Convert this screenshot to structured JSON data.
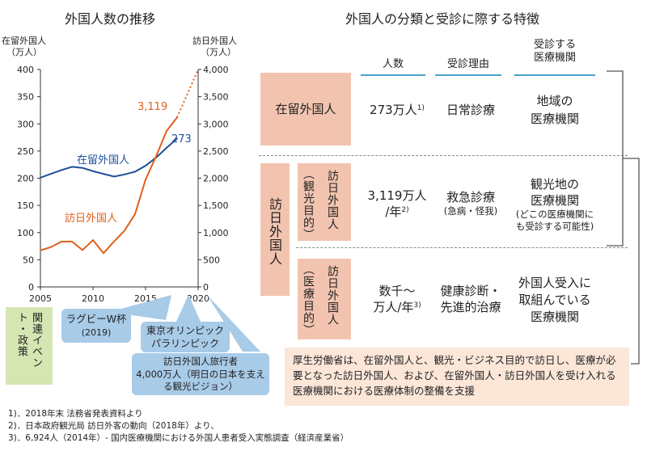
{
  "left_title": "外国人数の推移",
  "right_title": "外国人の分類と受診に際する特徴",
  "chart_data": {
    "type": "line",
    "x": [
      2005,
      2006,
      2007,
      2008,
      2009,
      2010,
      2011,
      2012,
      2013,
      2014,
      2015,
      2016,
      2017,
      2018
    ],
    "left_axis_label_1": "在留外国人",
    "left_axis_label_2": "（万人）",
    "right_axis_label_1": "訪日外国人",
    "right_axis_label_2": "（万人）",
    "left_ticks": [
      "400",
      "350",
      "300",
      "250",
      "200",
      "150",
      "100",
      "50",
      "0"
    ],
    "right_ticks": [
      "4,000",
      "3,500",
      "3,000",
      "2,500",
      "2,000",
      "1,500",
      "1,000",
      "500",
      "0"
    ],
    "x_ticks": [
      "2005",
      "2010",
      "2015",
      "2020"
    ],
    "xlim": [
      2005,
      2020
    ],
    "ylim_left": [
      0,
      400
    ],
    "ylim_right": [
      0,
      4000
    ],
    "series": [
      {
        "name": "在留外国人",
        "axis": "left",
        "color": "#1f4f99",
        "values": [
          201,
          208,
          215,
          221,
          219,
          213,
          208,
          203,
          207,
          212,
          223,
          238,
          256,
          273
        ]
      },
      {
        "name": "訪日外国人",
        "axis": "right",
        "color": "#e0601c",
        "values": [
          673,
          733,
          835,
          835,
          679,
          861,
          622,
          836,
          1036,
          1341,
          1974,
          2404,
          2869,
          3119
        ]
      }
    ],
    "projection": {
      "axis": "right",
      "from": [
        2018,
        3119
      ],
      "to": [
        2020,
        4000
      ]
    },
    "labels": {
      "zairyu": "在留外国人",
      "honichi": "訪日外国人",
      "honichi_value": "3,119",
      "zairyu_value": "273"
    }
  },
  "events": {
    "side_label": "関連イベント・政策",
    "rugby": "ラグビーW杯",
    "rugby_year": "(2019)",
    "olympics_1": "東京オリンピック",
    "olympics_2": "パラリンピック",
    "target_1": "訪日外国人旅行者",
    "target_2": "4,000万人（明日の日本を支え",
    "target_3": "る観光ビジョン）"
  },
  "table": {
    "col_count": "人数",
    "col_reason": "受診理由",
    "col_inst_1": "受診する",
    "col_inst_2": "医療機関",
    "row1_label": "在留外国人",
    "row1_count": "273万人",
    "row1_count_sup": "1)",
    "row1_reason": "日常診療",
    "row1_inst_1": "地域の",
    "row1_inst_2": "医療機関",
    "group_label": "訪日外国人",
    "row2_sub_paren": "（観光目的）",
    "row2_sub_main": "訪日外国人",
    "row2_count_1": "3,119万人",
    "row2_count_2": "/年",
    "row2_count_sup": "2)",
    "row2_reason_1": "救急診療",
    "row2_reason_2": "(急病・怪我)",
    "row2_inst_1": "観光地の",
    "row2_inst_2": "医療機関",
    "row2_inst_3": "(どこの医療機関にも受診する可能性)",
    "row3_sub_paren": "（医療目的）",
    "row3_sub_main": "訪日外国人",
    "row3_count_1": "数千〜",
    "row3_count_2": "万人/年",
    "row3_count_sup": "3)",
    "row3_reason_1": "健康診断・",
    "row3_reason_2": "先進的治療",
    "row3_inst_1": "外国人受入に",
    "row3_inst_2": "取組んでいる",
    "row3_inst_3": "医療機関"
  },
  "note": "厚生労働省は、在留外国人と、観光・ビジネス目的で訪日し、医療が必要となった訪日外国人、および、在留外国人・訪日外国人を受け入れる医療機関における医療体制の整備を支援",
  "footnotes": [
    "1)．2018年末 法務省発表資料より",
    "2)．日本政府観光局 訪日外客の動向（2018年）より、",
    "3)．6,924人（2014年）- 国内医療機関における外国人患者受入実態調査（経済産業省）"
  ]
}
